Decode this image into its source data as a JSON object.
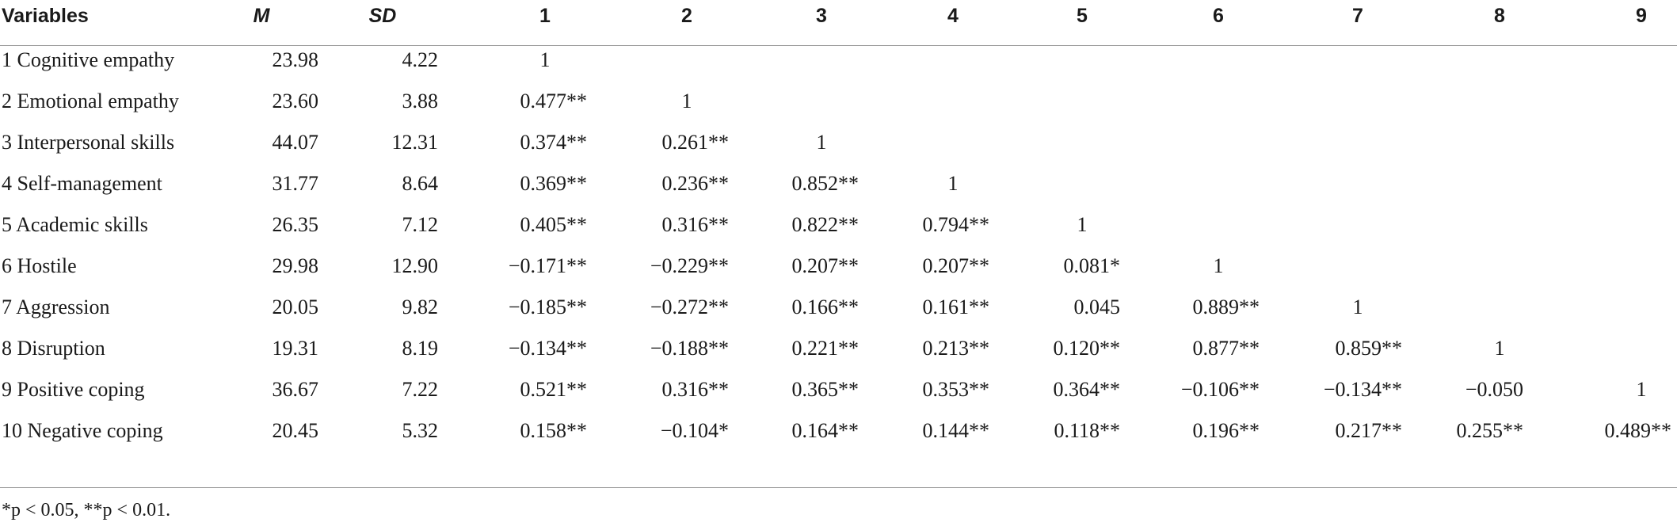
{
  "table": {
    "headers": [
      "Variables",
      "M",
      "SD",
      "1",
      "2",
      "3",
      "4",
      "5",
      "6",
      "7",
      "8",
      "9"
    ],
    "rows": [
      {
        "label": "1 Cognitive empathy",
        "m": "23.98",
        "sd": "4.22",
        "values": [
          "1",
          "",
          "",
          "",
          "",
          "",
          "",
          "",
          ""
        ]
      },
      {
        "label": "2 Emotional empathy",
        "m": "23.60",
        "sd": "3.88",
        "values": [
          "0.477**",
          "1",
          "",
          "",
          "",
          "",
          "",
          "",
          ""
        ]
      },
      {
        "label": "3 Interpersonal skills",
        "m": "44.07",
        "sd": "12.31",
        "values": [
          "0.374**",
          "0.261**",
          "1",
          "",
          "",
          "",
          "",
          "",
          ""
        ]
      },
      {
        "label": "4 Self-management",
        "m": "31.77",
        "sd": "8.64",
        "values": [
          "0.369**",
          "0.236**",
          "0.852**",
          "1",
          "",
          "",
          "",
          "",
          ""
        ]
      },
      {
        "label": "5 Academic skills",
        "m": "26.35",
        "sd": "7.12",
        "values": [
          "0.405**",
          "0.316**",
          "0.822**",
          "0.794**",
          "1",
          "",
          "",
          "",
          ""
        ]
      },
      {
        "label": "6 Hostile",
        "m": "29.98",
        "sd": "12.90",
        "values": [
          "−0.171**",
          "−0.229**",
          "0.207**",
          "0.207**",
          "0.081*",
          "1",
          "",
          "",
          ""
        ]
      },
      {
        "label": "7 Aggression",
        "m": "20.05",
        "sd": "9.82",
        "values": [
          "−0.185**",
          "−0.272**",
          "0.166**",
          "0.161**",
          "0.045",
          "0.889**",
          "1",
          "",
          ""
        ]
      },
      {
        "label": "8 Disruption",
        "m": "19.31",
        "sd": "8.19",
        "values": [
          "−0.134**",
          "−0.188**",
          "0.221**",
          "0.213**",
          "0.120**",
          "0.877**",
          "0.859**",
          "1",
          ""
        ]
      },
      {
        "label": "9 Positive coping",
        "m": "36.67",
        "sd": "7.22",
        "values": [
          "0.521**",
          "0.316**",
          "0.365**",
          "0.353**",
          "0.364**",
          "−0.106**",
          "−0.134**",
          "−0.050",
          "1"
        ]
      },
      {
        "label": "10 Negative coping",
        "m": "20.45",
        "sd": "5.32",
        "values": [
          "0.158**",
          "−0.104*",
          "0.164**",
          "0.144**",
          "0.118**",
          "0.196**",
          "0.217**",
          "0.255**",
          "0.489**"
        ]
      }
    ]
  },
  "footnote": "*p < 0.05, **p < 0.01."
}
